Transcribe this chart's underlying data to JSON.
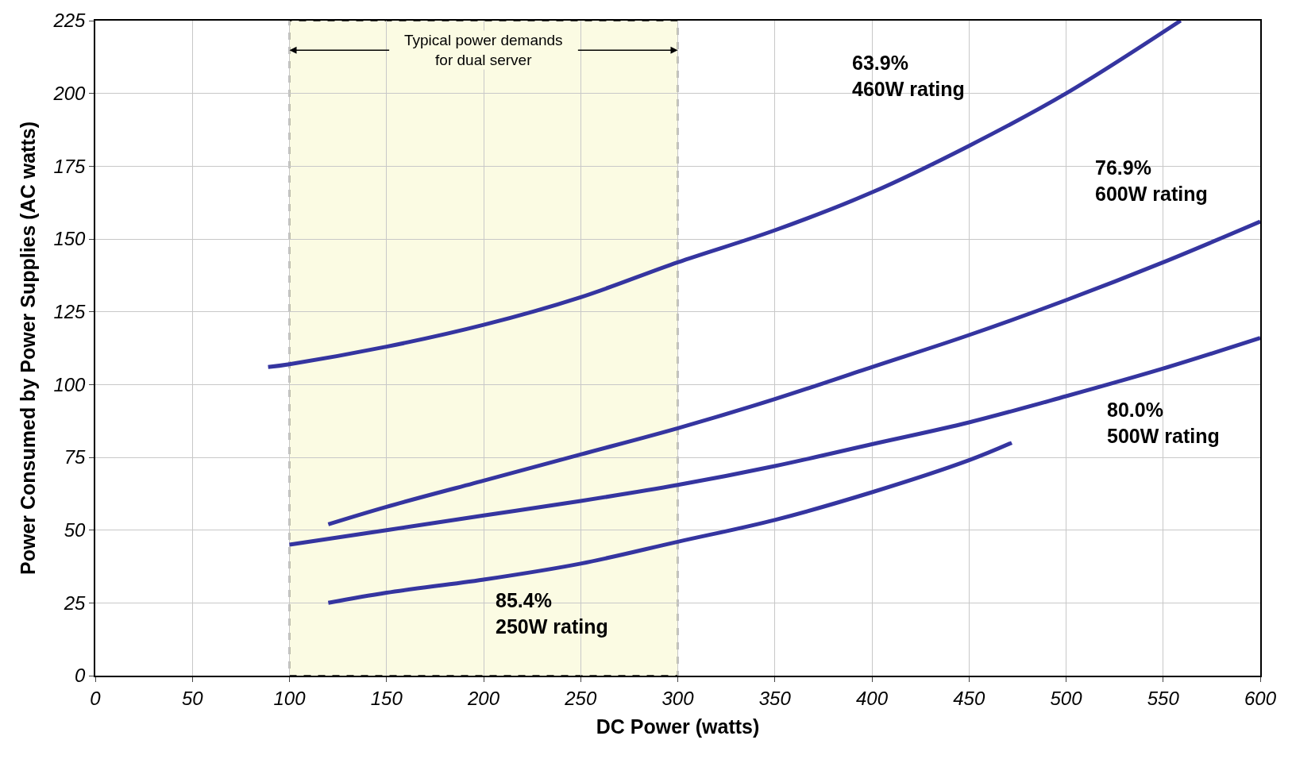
{
  "chart_data": {
    "type": "line",
    "xlabel": "DC Power (watts)",
    "ylabel": "Power Consumed by Power Supplies (AC watts)",
    "xlim": [
      0,
      600
    ],
    "xticks": [
      0,
      50,
      100,
      150,
      200,
      250,
      300,
      350,
      400,
      450,
      500,
      550,
      600
    ],
    "ylim": [
      0,
      225
    ],
    "yticks": [
      0,
      25,
      50,
      75,
      100,
      125,
      150,
      175,
      200,
      225
    ],
    "grid": true,
    "legend": false,
    "line_style": "solid",
    "marker": "none",
    "series": [
      {
        "name": "63.9%\n460W rating",
        "color": "#3535a0",
        "x": [
          89,
          100,
          150,
          200,
          250,
          300,
          350,
          400,
          450,
          500,
          559
        ],
        "values": [
          106,
          107,
          113,
          120.5,
          130,
          142,
          153,
          166,
          182,
          200,
          225
        ]
      },
      {
        "name": "76.9%\n600W rating",
        "color": "#3535a0",
        "x": [
          120,
          150,
          200,
          250,
          300,
          350,
          400,
          450,
          500,
          550,
          600
        ],
        "values": [
          52,
          58,
          67,
          76,
          85,
          95,
          106,
          117,
          129,
          142,
          156
        ]
      },
      {
        "name": "80.0%\n500W rating",
        "color": "#3535a0",
        "x": [
          100,
          150,
          200,
          250,
          300,
          350,
          400,
          450,
          500,
          550,
          600
        ],
        "values": [
          45,
          50,
          55,
          60,
          65.5,
          72,
          79.5,
          87,
          96,
          105.5,
          116
        ]
      },
      {
        "name": "85.4%\n250W rating",
        "color": "#3535a0",
        "x": [
          120,
          150,
          200,
          250,
          300,
          350,
          400,
          450,
          472
        ],
        "values": [
          25,
          28.5,
          33,
          38.5,
          46,
          53.5,
          63,
          74,
          80
        ]
      }
    ],
    "bands": [
      {
        "axis": "x",
        "from": 100,
        "to": 300,
        "label": "Typical power demands\nfor dual server",
        "color": "#fbfbe3"
      }
    ]
  }
}
